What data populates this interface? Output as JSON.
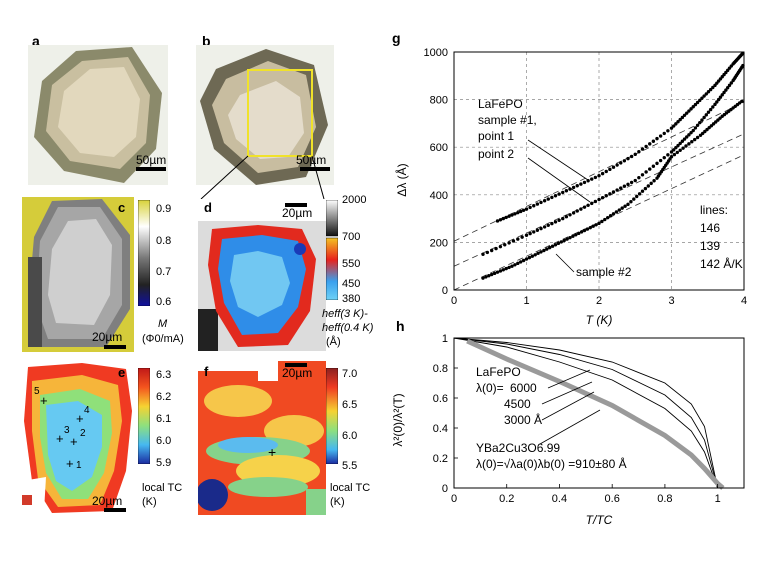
{
  "panels": {
    "a": {
      "label": "a",
      "scale": "50µm"
    },
    "b": {
      "label": "b",
      "scale": "50µm"
    },
    "c": {
      "label": "c",
      "scale": "20µm",
      "colorbar_ticks": [
        "0.9",
        "0.8",
        "0.7",
        "0.6"
      ],
      "colorbar_title_var": "M",
      "colorbar_title_units": "(Φ0/mA)"
    },
    "d": {
      "label": "d",
      "scale": "20µm",
      "colorbar_ticks_top": [
        "2000",
        "700"
      ],
      "colorbar_ticks": [
        "550",
        "450",
        "380"
      ],
      "colorbar_title_line1": "heff(3 K)-",
      "colorbar_title_line2": "heff(0.4 K)",
      "colorbar_units": "(Å)"
    },
    "e": {
      "label": "e",
      "scale": "20µm",
      "colorbar_ticks": [
        "6.3",
        "6.2",
        "6.1",
        "6.0",
        "5.9"
      ],
      "colorbar_title": "local TC",
      "colorbar_units": "(K)",
      "points": [
        "1",
        "2",
        "3",
        "4",
        "5"
      ]
    },
    "f": {
      "label": "f",
      "scale": "20µm",
      "colorbar_ticks": [
        "7.0",
        "6.5",
        "6.0",
        "5.5"
      ],
      "colorbar_title": "local TC",
      "colorbar_units": "(K)"
    }
  },
  "chart_data": [
    {
      "panel": "g",
      "type": "scatter",
      "xlabel": "T (K)",
      "ylabel": "Δλ (Å)",
      "xlim": [
        0,
        4
      ],
      "ylim": [
        0,
        1000
      ],
      "xticks": [
        "0",
        "1",
        "2",
        "3",
        "4"
      ],
      "yticks": [
        "0",
        "200",
        "400",
        "600",
        "800",
        "1000"
      ],
      "annotations": {
        "group": "LaFePO",
        "sample1": "sample #1,",
        "point1": "point 1",
        "point2": "point 2",
        "sample2": "sample #2",
        "lines_title": "lines:",
        "slopes": [
          "146",
          "139",
          "142 Å/K"
        ]
      },
      "series": [
        {
          "name": "sample #1, point 1",
          "x": [
            0.6,
            1.0,
            1.5,
            2.0,
            2.5,
            3.0,
            3.3,
            3.6,
            3.85,
            4.0
          ],
          "y": [
            290,
            340,
            410,
            480,
            570,
            680,
            770,
            860,
            950,
            1000
          ],
          "fit_slope": 146,
          "fit_intercept": 205
        },
        {
          "name": "sample #1, point 2",
          "x": [
            0.4,
            1.0,
            1.5,
            2.0,
            2.5,
            3.0,
            3.3,
            3.6,
            3.85,
            4.0
          ],
          "y": [
            150,
            230,
            300,
            380,
            460,
            580,
            670,
            780,
            880,
            950
          ],
          "fit_slope": 139,
          "fit_intercept": 100
        },
        {
          "name": "sample #2",
          "x": [
            0.4,
            0.8,
            1.2,
            1.6,
            2.0,
            2.4,
            2.8,
            3.0,
            3.4,
            3.7,
            4.0
          ],
          "y": [
            50,
            100,
            160,
            220,
            280,
            360,
            470,
            560,
            650,
            730,
            800
          ],
          "fit_slope": 142,
          "fit_intercept": 0
        }
      ]
    },
    {
      "panel": "h",
      "type": "line",
      "xlabel": "T/TC",
      "ylabel": "λ²(0)/λ²(T)",
      "xlim": [
        0,
        1.1
      ],
      "ylim": [
        0,
        1
      ],
      "xticks": [
        "0",
        "0.2",
        "0.4",
        "0.6",
        "0.8",
        "1"
      ],
      "yticks": [
        "0",
        "0.2",
        "0.4",
        "0.6",
        "0.8",
        "1"
      ],
      "annotations": {
        "group": "LaFePO",
        "lambda_prefix": "λ(0)=",
        "values": [
          "6000",
          "4500",
          "3000 Å"
        ],
        "ybco_name": "YBa2Cu3O6.99",
        "ybco_lambda": "λ(0)=√λa(0)λb(0) =910±80 Å"
      },
      "series": [
        {
          "name": "λ(0)=3000 Å",
          "x": [
            0,
            0.2,
            0.4,
            0.6,
            0.8,
            0.9,
            0.95,
            1.0
          ],
          "y": [
            1,
            0.94,
            0.84,
            0.72,
            0.53,
            0.38,
            0.24,
            0
          ]
        },
        {
          "name": "λ(0)=4500 Å",
          "x": [
            0,
            0.2,
            0.4,
            0.6,
            0.8,
            0.9,
            0.95,
            1.0
          ],
          "y": [
            1,
            0.96,
            0.89,
            0.79,
            0.62,
            0.47,
            0.32,
            0
          ]
        },
        {
          "name": "λ(0)=6000 Å",
          "x": [
            0,
            0.2,
            0.4,
            0.6,
            0.8,
            0.9,
            0.95,
            1.0
          ],
          "y": [
            1,
            0.97,
            0.92,
            0.84,
            0.7,
            0.56,
            0.41,
            0
          ]
        },
        {
          "name": "YBa2Cu3O6.99",
          "x": [
            0.05,
            0.2,
            0.4,
            0.6,
            0.8,
            0.9,
            0.95,
            1.0,
            1.02
          ],
          "y": [
            0.98,
            0.86,
            0.71,
            0.55,
            0.35,
            0.22,
            0.13,
            0.03,
            0
          ]
        }
      ]
    }
  ]
}
